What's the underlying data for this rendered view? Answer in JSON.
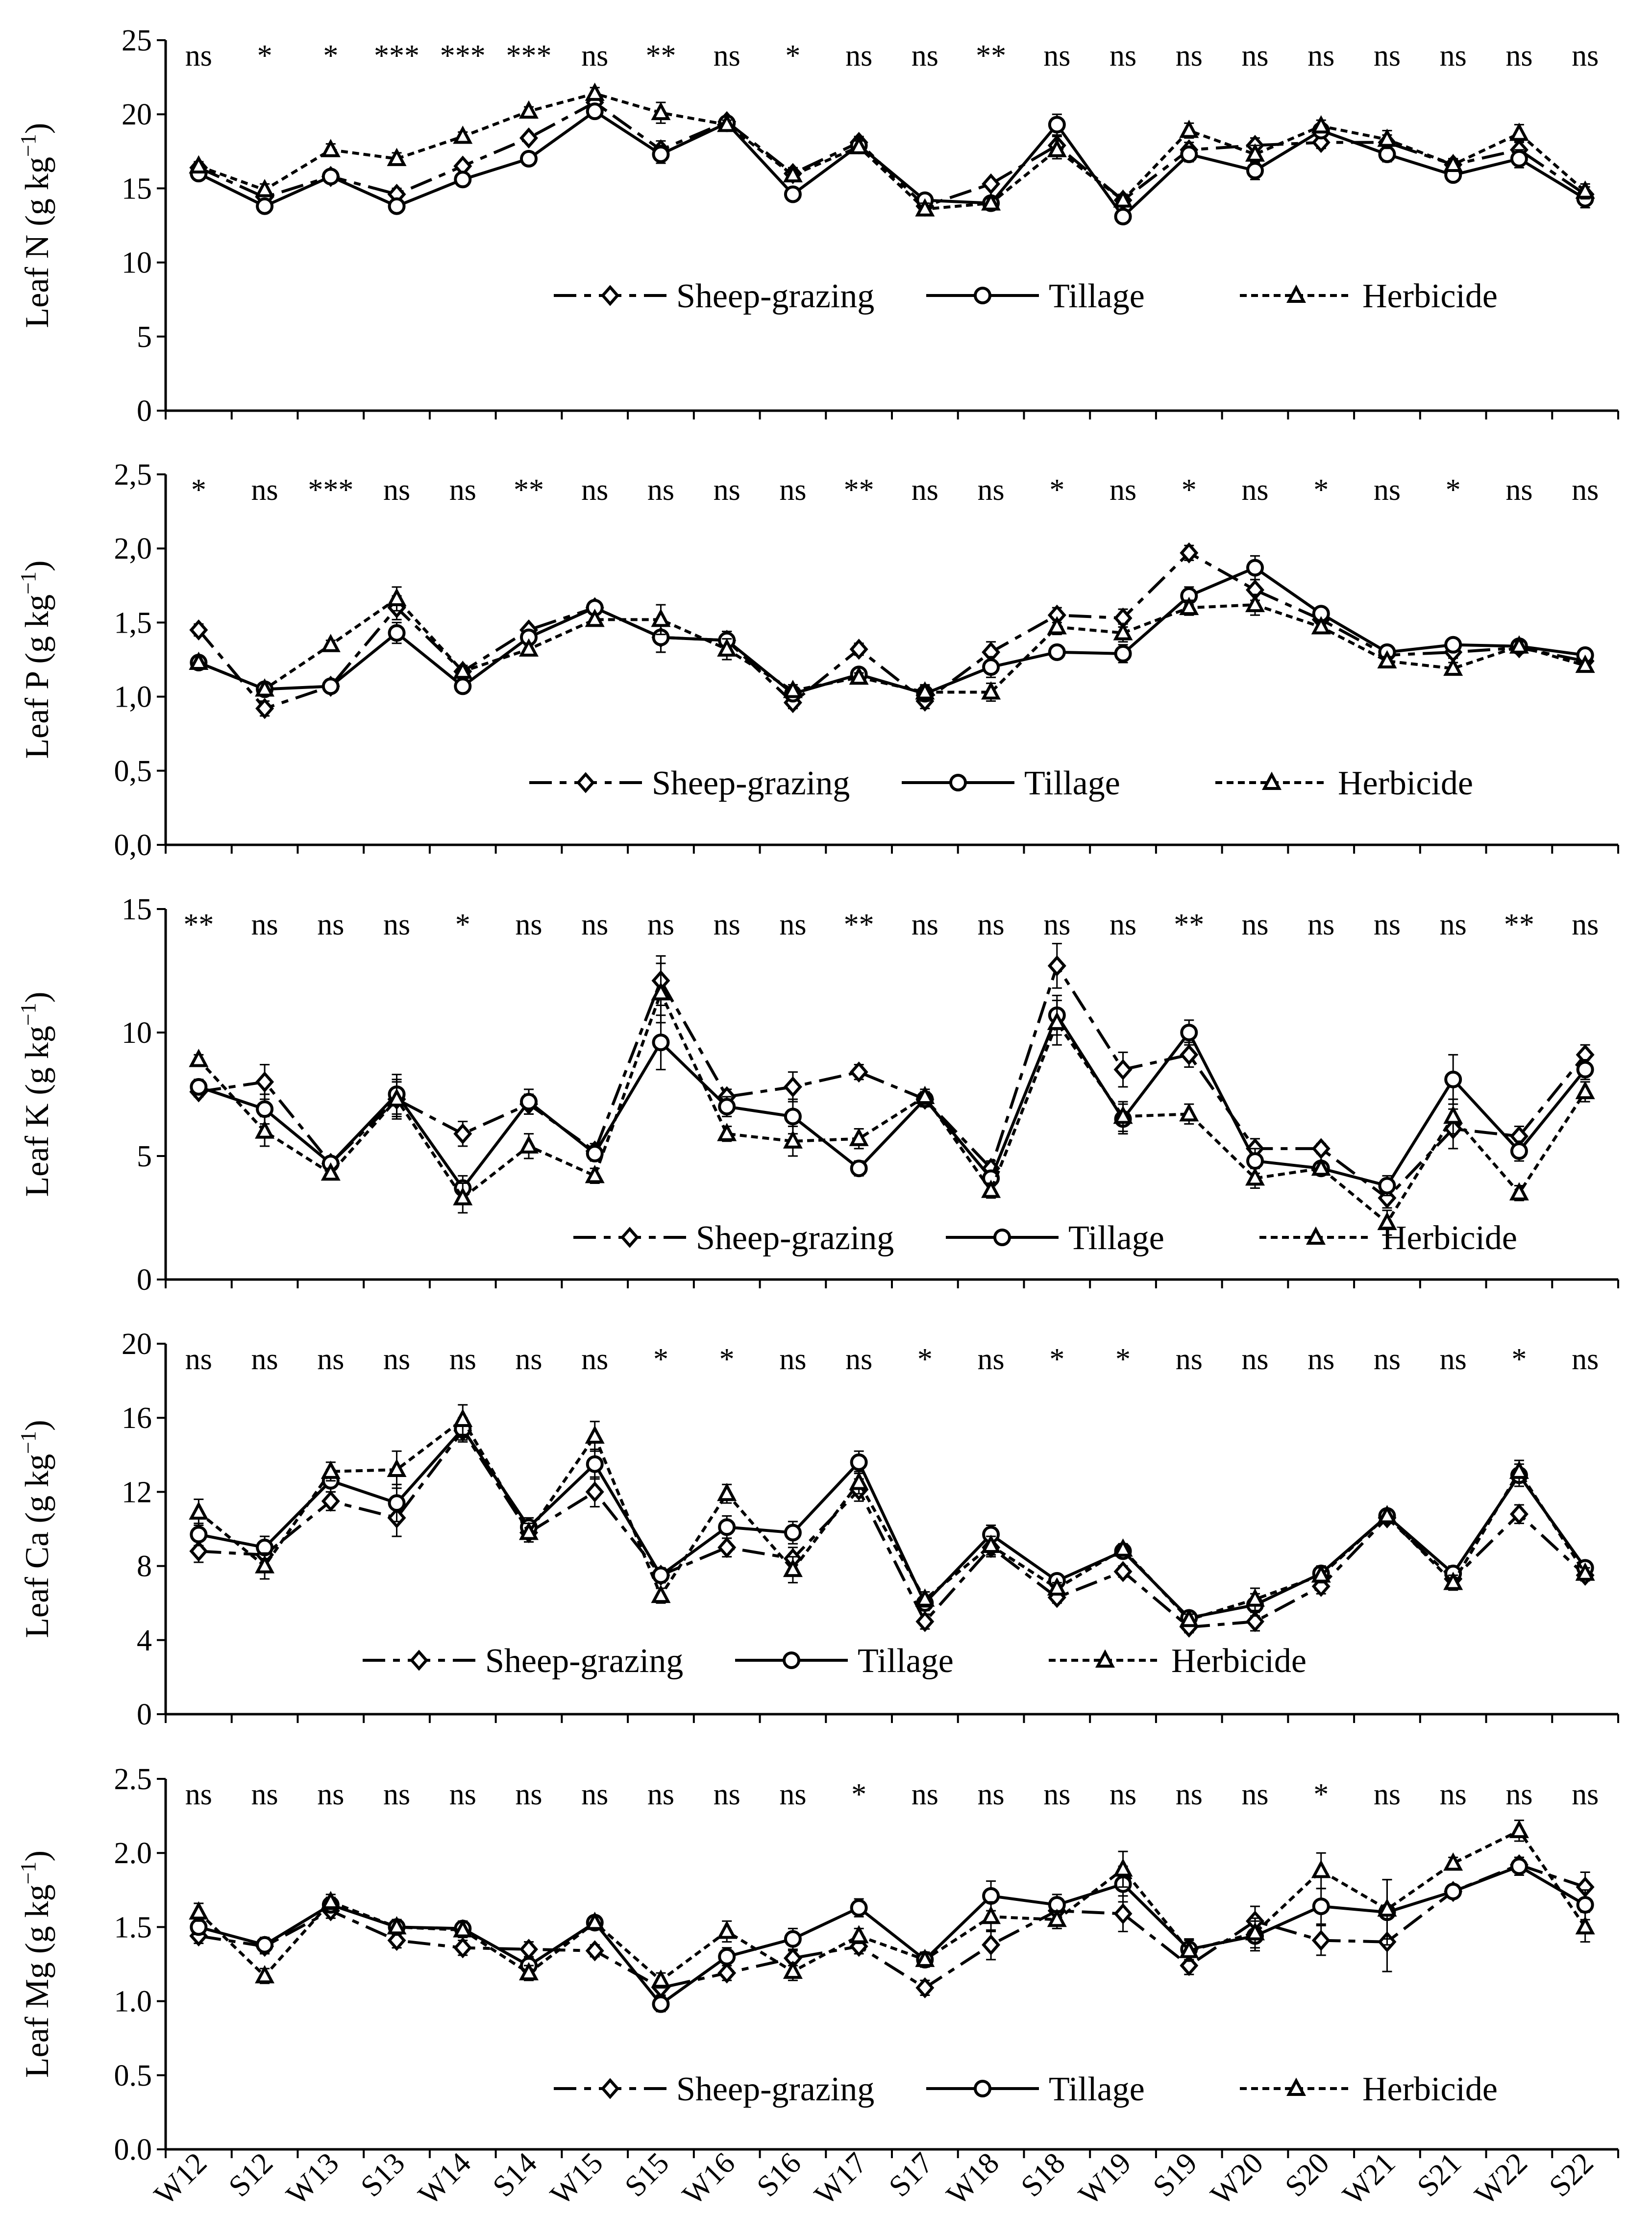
{
  "figure": {
    "legend": [
      "Sheep-grazing",
      "Tillage",
      "Herbicide"
    ],
    "colors": {
      "line": "#000000",
      "background": "#ffffff"
    }
  },
  "chart_data": [
    {
      "type": "line",
      "ylabel_main": "Leaf N",
      "ylabel_unit": "(g kg",
      "ylabel_exp": "−1",
      "ylabel_close": ")",
      "ylim": [
        0,
        25
      ],
      "yticks": [
        "0",
        "5",
        "10",
        "15",
        "20",
        "25"
      ],
      "categories": [
        "W12",
        "S12",
        "W13",
        "S13",
        "W14",
        "S14",
        "W15",
        "S15",
        "W16",
        "S16",
        "W17",
        "S17",
        "W18",
        "S18",
        "W19",
        "S19",
        "W20",
        "S20",
        "W21",
        "S21",
        "W22",
        "S22"
      ],
      "significance": [
        "ns",
        "*",
        "*",
        "***",
        "***",
        "***",
        "ns",
        "**",
        "ns",
        "*",
        "ns",
        "ns",
        "**",
        "ns",
        "ns",
        "ns",
        "ns",
        "ns",
        "ns",
        "ns",
        "ns",
        "ns"
      ],
      "series": [
        {
          "name": "Sheep-grazing",
          "values": [
            16.4,
            14.4,
            15.8,
            14.6,
            16.5,
            18.4,
            20.8,
            17.6,
            19.5,
            16.0,
            18.1,
            13.8,
            15.3,
            17.9,
            14.2,
            17.6,
            17.9,
            18.1,
            18.1,
            16.6,
            17.6,
            14.6
          ],
          "errors": [
            0.3,
            0.4,
            0.3,
            0.4,
            0.3,
            0.3,
            0.4,
            0.6,
            0.3,
            0.4,
            0.4,
            0.4,
            0.3,
            0.6,
            0.4,
            0.5,
            0.5,
            0.4,
            0.5,
            0.4,
            0.6,
            0.5
          ]
        },
        {
          "name": "Tillage",
          "values": [
            16.0,
            13.8,
            15.8,
            13.8,
            15.6,
            17.0,
            20.2,
            17.3,
            19.4,
            14.6,
            17.9,
            14.2,
            14.0,
            19.3,
            13.1,
            17.3,
            16.2,
            18.9,
            17.3,
            15.9,
            17.0,
            14.3
          ],
          "errors": [
            0.3,
            0.4,
            0.3,
            0.4,
            0.3,
            0.3,
            0.4,
            0.6,
            0.3,
            0.4,
            0.4,
            0.4,
            0.3,
            0.7,
            0.4,
            0.5,
            0.6,
            0.4,
            0.5,
            0.4,
            0.6,
            0.6
          ]
        },
        {
          "name": "Herbicide",
          "values": [
            16.5,
            14.9,
            17.6,
            17.0,
            18.5,
            20.2,
            21.4,
            20.1,
            19.3,
            15.9,
            17.8,
            13.6,
            14.0,
            17.6,
            14.2,
            18.9,
            17.3,
            19.2,
            18.3,
            16.6,
            18.7,
            14.8
          ],
          "errors": [
            0.3,
            0.4,
            0.4,
            0.4,
            0.3,
            0.3,
            0.4,
            0.7,
            0.3,
            0.4,
            0.4,
            0.4,
            0.3,
            0.6,
            0.4,
            0.5,
            0.6,
            0.4,
            0.6,
            0.4,
            0.6,
            0.5
          ]
        }
      ]
    },
    {
      "type": "line",
      "ylabel_main": "Leaf P",
      "ylabel_unit": "(g kg",
      "ylabel_exp": "−1",
      "ylabel_close": ")",
      "ylim": [
        0,
        2.5
      ],
      "yticks": [
        "0,0",
        "0,5",
        "1,0",
        "1,5",
        "2,0",
        "2,5"
      ],
      "categories": [
        "W12",
        "S12",
        "W13",
        "S13",
        "W14",
        "S14",
        "W15",
        "S15",
        "W16",
        "S16",
        "W17",
        "S17",
        "W18",
        "S18",
        "W19",
        "S19",
        "W20",
        "S20",
        "W21",
        "S21",
        "W22",
        "S22"
      ],
      "significance": [
        "*",
        "ns",
        "***",
        "ns",
        "ns",
        "**",
        "ns",
        "ns",
        "ns",
        "ns",
        "**",
        "ns",
        "ns",
        "*",
        "ns",
        "*",
        "ns",
        "*",
        "ns",
        "*",
        "ns",
        "ns"
      ],
      "series": [
        {
          "name": "Sheep-grazing",
          "values": [
            1.45,
            0.92,
            1.07,
            1.6,
            1.17,
            1.45,
            1.6,
            1.4,
            1.38,
            0.96,
            1.32,
            0.97,
            1.3,
            1.55,
            1.53,
            1.97,
            1.72,
            1.52,
            1.28,
            1.3,
            1.33,
            1.24
          ],
          "errors": [
            0.04,
            0.05,
            0.03,
            0.08,
            0.04,
            0.03,
            0.04,
            0.1,
            0.06,
            0.04,
            0.04,
            0.05,
            0.07,
            0.05,
            0.06,
            0.05,
            0.07,
            0.04,
            0.03,
            0.04,
            0.03,
            0.03
          ]
        },
        {
          "name": "Tillage",
          "values": [
            1.23,
            1.05,
            1.07,
            1.43,
            1.07,
            1.4,
            1.6,
            1.4,
            1.38,
            1.02,
            1.15,
            1.02,
            1.2,
            1.3,
            1.29,
            1.68,
            1.87,
            1.56,
            1.3,
            1.35,
            1.34,
            1.28
          ],
          "errors": [
            0.04,
            0.04,
            0.03,
            0.07,
            0.04,
            0.03,
            0.04,
            0.1,
            0.06,
            0.04,
            0.03,
            0.05,
            0.07,
            0.04,
            0.06,
            0.06,
            0.08,
            0.04,
            0.03,
            0.04,
            0.03,
            0.03
          ]
        },
        {
          "name": "Herbicide",
          "values": [
            1.23,
            1.05,
            1.35,
            1.66,
            1.17,
            1.32,
            1.52,
            1.52,
            1.32,
            1.04,
            1.13,
            1.03,
            1.03,
            1.47,
            1.43,
            1.6,
            1.62,
            1.47,
            1.24,
            1.19,
            1.34,
            1.21
          ],
          "errors": [
            0.04,
            0.04,
            0.03,
            0.08,
            0.04,
            0.03,
            0.04,
            0.1,
            0.07,
            0.04,
            0.03,
            0.05,
            0.06,
            0.05,
            0.06,
            0.05,
            0.07,
            0.04,
            0.03,
            0.04,
            0.03,
            0.03
          ]
        }
      ]
    },
    {
      "type": "line",
      "ylabel_main": "Leaf K",
      "ylabel_unit": "(g kg",
      "ylabel_exp": "−1",
      "ylabel_close": ")",
      "ylim": [
        0,
        15
      ],
      "yticks": [
        "0",
        "5",
        "10",
        "15"
      ],
      "categories": [
        "W12",
        "S12",
        "W13",
        "S13",
        "W14",
        "S14",
        "W15",
        "S15",
        "W16",
        "S16",
        "W17",
        "S17",
        "W18",
        "S18",
        "W19",
        "S19",
        "W20",
        "S20",
        "W21",
        "S21",
        "W22",
        "S22"
      ],
      "significance": [
        "**",
        "ns",
        "ns",
        "ns",
        "*",
        "ns",
        "ns",
        "ns",
        "ns",
        "ns",
        "**",
        "ns",
        "ns",
        "ns",
        "ns",
        "**",
        "ns",
        "ns",
        "ns",
        "ns",
        "**",
        "ns"
      ],
      "series": [
        {
          "name": "Sheep-grazing",
          "values": [
            7.6,
            8.0,
            4.7,
            7.3,
            5.9,
            7.1,
            5.2,
            12.1,
            7.4,
            7.8,
            8.4,
            7.3,
            4.5,
            12.7,
            8.5,
            9.1,
            5.3,
            5.3,
            3.3,
            6.1,
            5.8,
            9.1
          ],
          "errors": [
            0.2,
            0.7,
            0.2,
            0.8,
            0.5,
            0.4,
            0.3,
            1.0,
            0.3,
            0.6,
            0.3,
            0.3,
            0.3,
            0.9,
            0.7,
            0.5,
            0.4,
            0.2,
            0.4,
            0.8,
            0.4,
            0.4
          ]
        },
        {
          "name": "Tillage",
          "values": [
            7.8,
            6.9,
            4.7,
            7.5,
            3.7,
            7.2,
            5.1,
            9.6,
            7.0,
            6.6,
            4.5,
            7.3,
            4.1,
            10.7,
            6.5,
            10.0,
            4.8,
            4.5,
            3.8,
            8.1,
            5.2,
            8.5
          ],
          "errors": [
            0.3,
            0.6,
            0.2,
            0.8,
            0.5,
            0.5,
            0.3,
            1.1,
            0.4,
            0.7,
            0.3,
            0.3,
            0.3,
            0.8,
            0.6,
            0.5,
            0.5,
            0.2,
            0.4,
            1.0,
            0.4,
            0.4
          ]
        },
        {
          "name": "Herbicide",
          "values": [
            8.9,
            6.0,
            4.3,
            7.3,
            3.3,
            5.4,
            4.2,
            11.6,
            5.9,
            5.6,
            5.7,
            7.4,
            3.6,
            10.4,
            6.6,
            6.7,
            4.1,
            4.5,
            2.3,
            6.6,
            3.5,
            7.6
          ],
          "errors": [
            0.2,
            0.6,
            0.2,
            0.7,
            0.6,
            0.5,
            0.3,
            1.2,
            0.3,
            0.6,
            0.4,
            0.3,
            0.3,
            0.9,
            0.6,
            0.4,
            0.4,
            0.2,
            0.5,
            0.7,
            0.3,
            0.4
          ]
        }
      ]
    },
    {
      "type": "line",
      "ylabel_main": "Leaf Ca",
      "ylabel_unit": "(g kg",
      "ylabel_exp": "−1",
      "ylabel_close": ")",
      "ylim": [
        0,
        20
      ],
      "yticks": [
        "0",
        "4",
        "8",
        "12",
        "16",
        "20"
      ],
      "categories": [
        "W12",
        "S12",
        "W13",
        "S13",
        "W14",
        "S14",
        "W15",
        "S15",
        "W16",
        "S16",
        "W17",
        "S17",
        "W18",
        "S18",
        "W19",
        "S19",
        "W20",
        "S20",
        "W21",
        "S21",
        "W22",
        "S22"
      ],
      "significance": [
        "ns",
        "ns",
        "ns",
        "ns",
        "ns",
        "ns",
        "ns",
        "*",
        "*",
        "ns",
        "ns",
        "*",
        "ns",
        "*",
        "*",
        "ns",
        "ns",
        "ns",
        "ns",
        "ns",
        "*",
        "ns"
      ],
      "series": [
        {
          "name": "Sheep-grazing",
          "values": [
            8.8,
            8.6,
            11.5,
            10.6,
            15.3,
            9.8,
            12.0,
            7.5,
            9.0,
            8.4,
            12.1,
            5.0,
            9.0,
            6.3,
            7.7,
            4.7,
            5.0,
            6.9,
            10.6,
            7.3,
            10.8,
            7.5
          ],
          "errors": [
            0.6,
            0.6,
            0.5,
            1.0,
            0.6,
            0.5,
            0.8,
            0.4,
            0.5,
            0.6,
            0.6,
            0.4,
            0.5,
            0.3,
            0.3,
            0.3,
            0.5,
            0.4,
            0.3,
            0.4,
            0.5,
            0.3
          ]
        },
        {
          "name": "Tillage",
          "values": [
            9.7,
            9.0,
            12.6,
            11.4,
            15.4,
            10.1,
            13.5,
            7.5,
            10.1,
            9.8,
            13.6,
            6.0,
            9.7,
            7.2,
            8.8,
            5.2,
            5.9,
            7.6,
            10.7,
            7.6,
            12.9,
            7.9
          ],
          "errors": [
            0.6,
            0.6,
            0.6,
            1.0,
            0.6,
            0.5,
            0.8,
            0.4,
            0.6,
            0.6,
            0.6,
            0.4,
            0.5,
            0.3,
            0.3,
            0.3,
            0.6,
            0.4,
            0.3,
            0.4,
            0.6,
            0.3
          ]
        },
        {
          "name": "Herbicide",
          "values": [
            10.9,
            8.0,
            13.1,
            13.2,
            15.9,
            9.8,
            15.0,
            6.4,
            11.9,
            7.8,
            12.5,
            6.2,
            9.1,
            6.8,
            8.9,
            5.1,
            6.2,
            7.5,
            10.7,
            7.1,
            13.1,
            7.6
          ],
          "errors": [
            0.7,
            0.7,
            0.5,
            1.0,
            0.8,
            0.5,
            0.8,
            0.4,
            0.5,
            0.7,
            0.6,
            0.4,
            0.5,
            0.3,
            0.3,
            0.3,
            0.6,
            0.4,
            0.3,
            0.4,
            0.6,
            0.3
          ]
        }
      ]
    },
    {
      "type": "line",
      "ylabel_main": "Leaf Mg",
      "ylabel_unit": "(g kg",
      "ylabel_exp": "−1",
      "ylabel_close": ")",
      "ylim": [
        0,
        2.5
      ],
      "yticks": [
        "0.0",
        "0.5",
        "1.0",
        "1.5",
        "2.0",
        "2.5"
      ],
      "categories": [
        "W12",
        "S12",
        "W13",
        "S13",
        "W14",
        "S14",
        "W15",
        "S15",
        "W16",
        "S16",
        "W17",
        "S17",
        "W18",
        "S18",
        "W19",
        "S19",
        "W20",
        "S20",
        "W21",
        "S21",
        "W22",
        "S22"
      ],
      "significance": [
        "ns",
        "ns",
        "ns",
        "ns",
        "ns",
        "ns",
        "ns",
        "ns",
        "ns",
        "ns",
        "*",
        "ns",
        "ns",
        "ns",
        "ns",
        "ns",
        "ns",
        "*",
        "ns",
        "ns",
        "ns",
        "ns"
      ],
      "series": [
        {
          "name": "Sheep-grazing",
          "values": [
            1.44,
            1.37,
            1.61,
            1.41,
            1.36,
            1.35,
            1.34,
            1.09,
            1.19,
            1.29,
            1.37,
            1.09,
            1.38,
            1.61,
            1.59,
            1.24,
            1.54,
            1.41,
            1.4,
            1.74,
            1.92,
            1.77
          ],
          "errors": [
            0.05,
            0.05,
            0.05,
            0.05,
            0.05,
            0.05,
            0.04,
            0.05,
            0.05,
            0.05,
            0.05,
            0.05,
            0.1,
            0.06,
            0.12,
            0.06,
            0.1,
            0.1,
            0.2,
            0.04,
            0.05,
            0.1
          ]
        },
        {
          "name": "Tillage",
          "values": [
            1.5,
            1.38,
            1.65,
            1.5,
            1.49,
            1.24,
            1.53,
            0.98,
            1.3,
            1.42,
            1.63,
            1.28,
            1.71,
            1.65,
            1.79,
            1.35,
            1.44,
            1.64,
            1.6,
            1.74,
            1.91,
            1.65
          ],
          "errors": [
            0.05,
            0.05,
            0.05,
            0.05,
            0.05,
            0.05,
            0.04,
            0.05,
            0.06,
            0.07,
            0.06,
            0.05,
            0.1,
            0.07,
            0.12,
            0.07,
            0.1,
            0.12,
            0.22,
            0.04,
            0.06,
            0.1
          ]
        },
        {
          "name": "Herbicide",
          "values": [
            1.6,
            1.17,
            1.67,
            1.5,
            1.48,
            1.19,
            1.53,
            1.14,
            1.47,
            1.2,
            1.44,
            1.28,
            1.57,
            1.55,
            1.89,
            1.34,
            1.46,
            1.88,
            1.62,
            1.93,
            2.15,
            1.5
          ],
          "errors": [
            0.06,
            0.05,
            0.05,
            0.05,
            0.05,
            0.05,
            0.04,
            0.05,
            0.07,
            0.06,
            0.05,
            0.05,
            0.1,
            0.06,
            0.12,
            0.07,
            0.1,
            0.12,
            0.2,
            0.04,
            0.07,
            0.1
          ]
        }
      ]
    }
  ]
}
